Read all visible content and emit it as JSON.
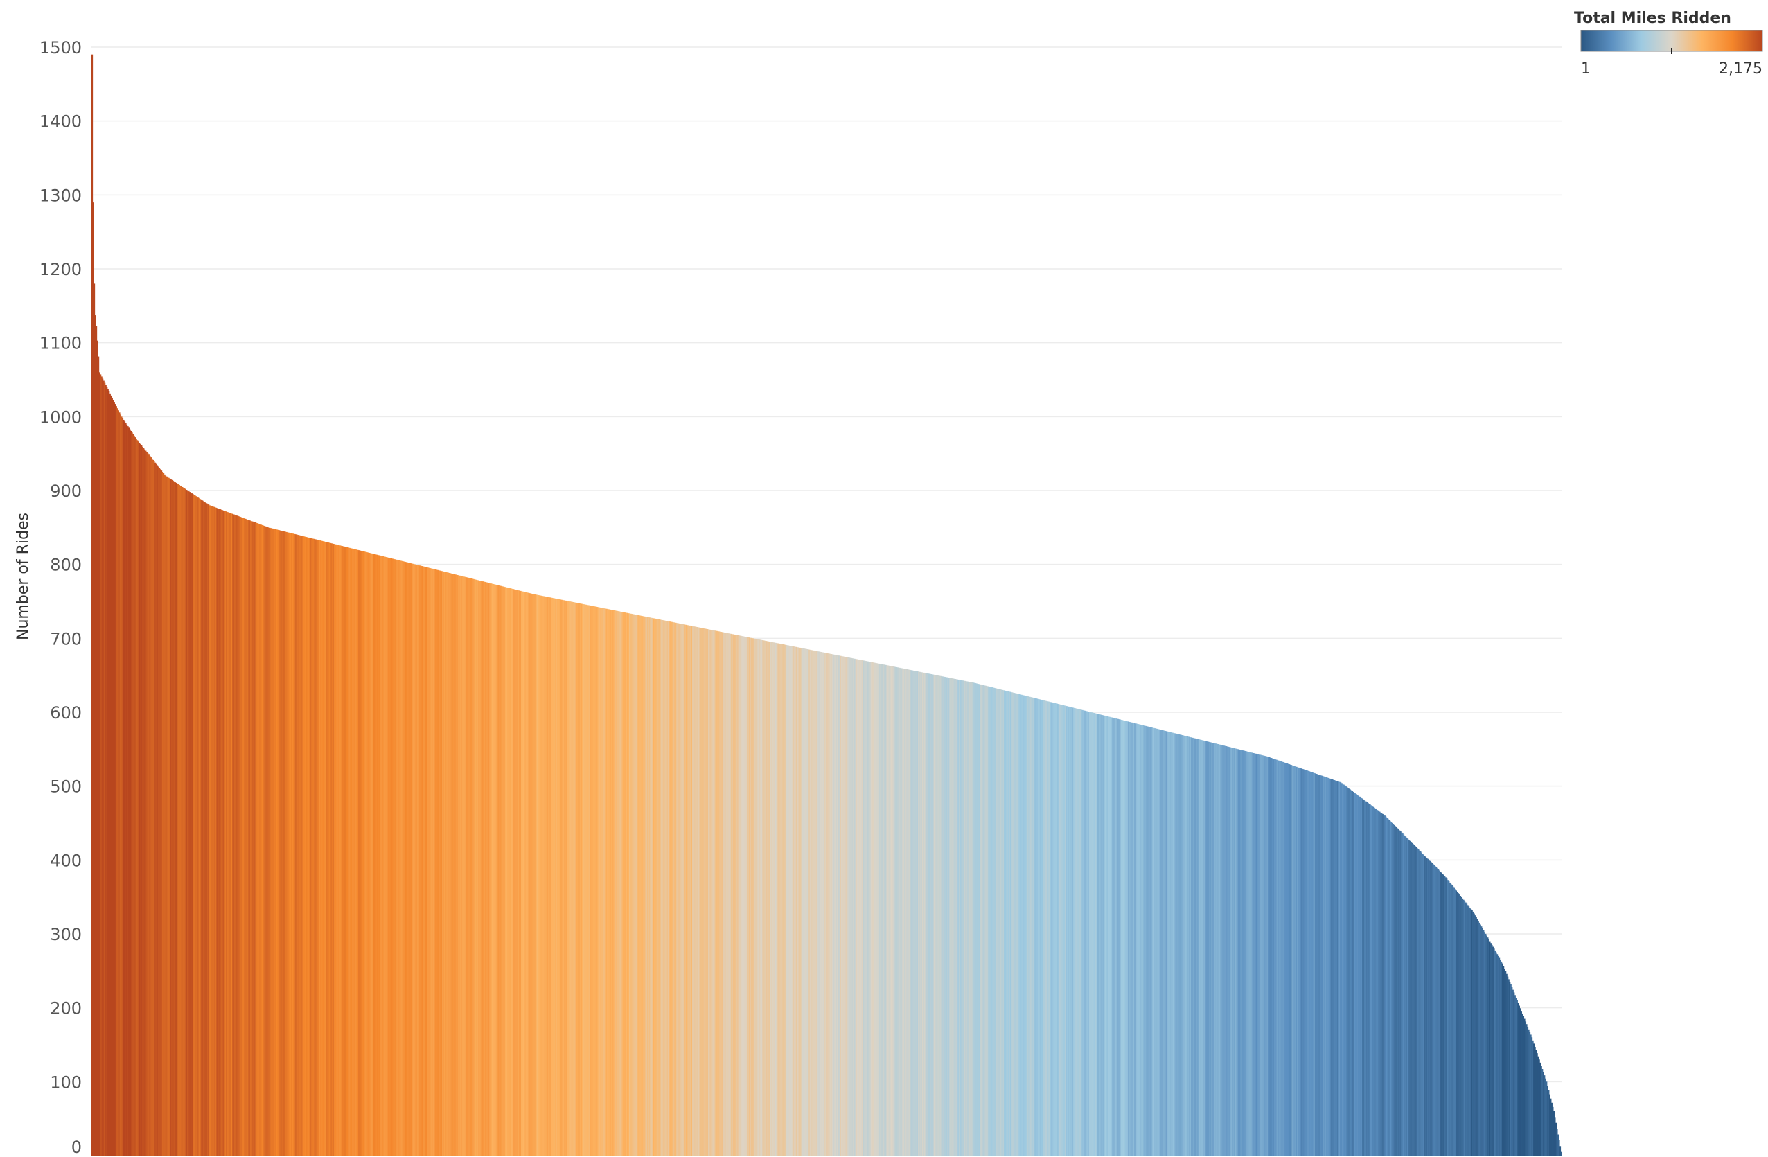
{
  "chart_data": {
    "type": "bar",
    "ylabel": "Number of Rides",
    "ylim": [
      0,
      1500
    ],
    "yticks": [
      0,
      100,
      200,
      300,
      400,
      500,
      600,
      700,
      800,
      900,
      1000,
      1100,
      1200,
      1300,
      1400,
      1500
    ],
    "grid": true,
    "sorted": "descending",
    "bar_count": 1400,
    "profile": [
      [
        0.0,
        1490
      ],
      [
        0.001,
        1210
      ],
      [
        0.002,
        1140
      ],
      [
        0.003,
        1120
      ],
      [
        0.005,
        1060
      ],
      [
        0.01,
        1040
      ],
      [
        0.02,
        1000
      ],
      [
        0.03,
        970
      ],
      [
        0.05,
        920
      ],
      [
        0.08,
        880
      ],
      [
        0.12,
        850
      ],
      [
        0.2,
        810
      ],
      [
        0.3,
        760
      ],
      [
        0.4,
        720
      ],
      [
        0.5,
        680
      ],
      [
        0.6,
        640
      ],
      [
        0.7,
        590
      ],
      [
        0.8,
        540
      ],
      [
        0.85,
        505
      ],
      [
        0.88,
        460
      ],
      [
        0.9,
        420
      ],
      [
        0.92,
        380
      ],
      [
        0.94,
        330
      ],
      [
        0.96,
        260
      ],
      [
        0.98,
        160
      ],
      [
        0.99,
        100
      ],
      [
        0.995,
        60
      ],
      [
        1.0,
        5
      ]
    ],
    "color_encoding": {
      "title": "Total Miles Ridden",
      "min_label": "1",
      "max_label": "2,175",
      "colors": [
        "#2a5783",
        "#5b8fc0",
        "#9ecae1",
        "#dcd5c8",
        "#fdb462",
        "#f4862b",
        "#b8461f"
      ]
    }
  }
}
